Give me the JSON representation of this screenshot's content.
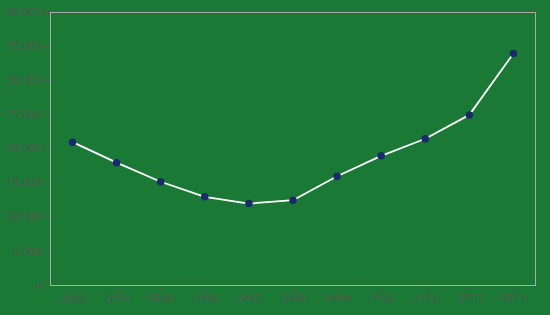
{
  "chart_data": {
    "type": "line",
    "x": [
      2003,
      2004,
      2005,
      2006,
      2007,
      2008,
      2009,
      2010,
      2011,
      2012,
      2013
    ],
    "values": [
      21000,
      18000,
      15200,
      13000,
      12000,
      12500,
      16000,
      19000,
      21500,
      25000,
      34000
    ],
    "color": "#ffffff",
    "marker": "circle",
    "xlim": [
      2002.5,
      2013.5
    ],
    "xticks": [
      2003,
      2004,
      2005,
      2006,
      2007,
      2008,
      2009,
      2010,
      2011,
      2012,
      2013
    ],
    "ylim": [
      0,
      40000
    ],
    "yticks": [
      0,
      {
        "value": 5000,
        "label": "5.000"
      },
      {
        "value": 10000,
        "label": "10.000"
      },
      {
        "value": 15000,
        "label": "15.000"
      },
      {
        "value": 20000,
        "label": "20.000"
      },
      {
        "value": 25000,
        "label": "25.000"
      },
      {
        "value": 30000,
        "label": "30.000"
      },
      {
        "value": 35000,
        "label": "35.000"
      },
      {
        "value": 40000,
        "label": "40.000"
      }
    ],
    "grid": false
  }
}
